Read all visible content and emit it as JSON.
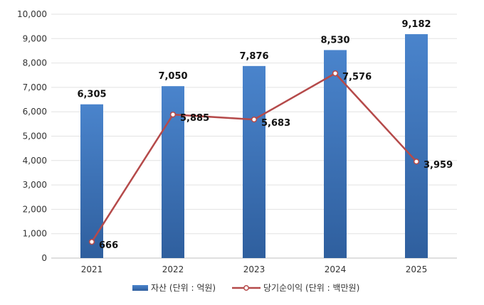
{
  "chart_data": {
    "type": "bar",
    "categories": [
      "2021",
      "2022",
      "2023",
      "2024",
      "2025"
    ],
    "series": [
      {
        "name": "자산 (단위 : 억원)",
        "kind": "bar",
        "values": [
          6305,
          7050,
          7876,
          8530,
          9182
        ],
        "labels": [
          "6,305",
          "7,050",
          "7,876",
          "8,530",
          "9,182"
        ],
        "color": "#3d72b8"
      },
      {
        "name": "당기순이익 (단위 : 백만원)",
        "kind": "line",
        "values": [
          666,
          5885,
          5683,
          7576,
          3959
        ],
        "labels": [
          "666",
          "5,885",
          "5,683",
          "7,576",
          "3,959"
        ],
        "color": "#b54a4a"
      }
    ],
    "ylim": [
      0,
      10000
    ],
    "yticks": [
      "0",
      "1,000",
      "2,000",
      "3,000",
      "4,000",
      "5,000",
      "6,000",
      "7,000",
      "8,000",
      "9,000",
      "10,000"
    ],
    "grid": true,
    "legend_position": "bottom"
  }
}
